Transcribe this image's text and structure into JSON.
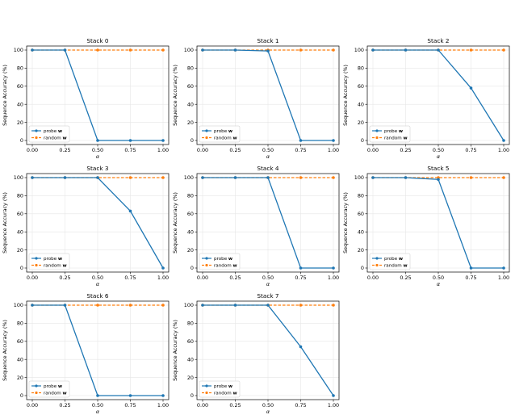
{
  "colors": {
    "probe": "#1f77b4",
    "random": "#ff7f0e",
    "grid": "#e6e6e6",
    "axis": "#000000"
  },
  "shared": {
    "xlabel": "α",
    "ylabel": "Sequence Accuracy (%)",
    "xticks": [
      "0.00",
      "0.25",
      "0.50",
      "0.75",
      "1.00"
    ],
    "yticks": [
      "0",
      "20",
      "40",
      "60",
      "80",
      "100"
    ],
    "legend": {
      "probe_prefix": "probe",
      "random_prefix": "random",
      "bold_symbol": "w",
      "placement": "lower-left"
    }
  },
  "chart_data": [
    {
      "type": "line",
      "title": "Stack 0",
      "x": [
        0,
        0.25,
        0.5,
        0.75,
        1.0
      ],
      "xlim": [
        0,
        1
      ],
      "ylim": [
        0,
        100
      ],
      "grid": true,
      "series": [
        {
          "name": "probe w",
          "values": [
            100,
            100,
            0,
            0,
            0
          ]
        },
        {
          "name": "random w",
          "values": [
            100,
            100,
            100,
            100,
            100
          ]
        }
      ]
    },
    {
      "type": "line",
      "title": "Stack 1",
      "x": [
        0,
        0.25,
        0.5,
        0.75,
        1.0
      ],
      "xlim": [
        0,
        1
      ],
      "ylim": [
        0,
        100
      ],
      "grid": true,
      "series": [
        {
          "name": "probe w",
          "values": [
            100,
            100,
            99,
            0,
            0
          ]
        },
        {
          "name": "random w",
          "values": [
            100,
            100,
            100,
            100,
            100
          ]
        }
      ]
    },
    {
      "type": "line",
      "title": "Stack 2",
      "x": [
        0,
        0.25,
        0.5,
        0.75,
        1.0
      ],
      "xlim": [
        0,
        1
      ],
      "ylim": [
        0,
        100
      ],
      "grid": true,
      "series": [
        {
          "name": "probe w",
          "values": [
            100,
            100,
            100,
            58,
            0
          ]
        },
        {
          "name": "random w",
          "values": [
            100,
            100,
            100,
            100,
            100
          ]
        }
      ]
    },
    {
      "type": "line",
      "title": "Stack 3",
      "x": [
        0,
        0.25,
        0.5,
        0.75,
        1.0
      ],
      "xlim": [
        0,
        1
      ],
      "ylim": [
        0,
        100
      ],
      "grid": true,
      "series": [
        {
          "name": "probe w",
          "values": [
            100,
            100,
            100,
            63,
            0
          ]
        },
        {
          "name": "random w",
          "values": [
            100,
            100,
            100,
            100,
            100
          ]
        }
      ]
    },
    {
      "type": "line",
      "title": "Stack 4",
      "x": [
        0,
        0.25,
        0.5,
        0.75,
        1.0
      ],
      "xlim": [
        0,
        1
      ],
      "ylim": [
        0,
        100
      ],
      "grid": true,
      "series": [
        {
          "name": "probe w",
          "values": [
            100,
            100,
            100,
            0,
            0
          ]
        },
        {
          "name": "random w",
          "values": [
            100,
            100,
            100,
            100,
            100
          ]
        }
      ]
    },
    {
      "type": "line",
      "title": "Stack 5",
      "x": [
        0,
        0.25,
        0.5,
        0.75,
        1.0
      ],
      "xlim": [
        0,
        1
      ],
      "ylim": [
        0,
        100
      ],
      "grid": true,
      "series": [
        {
          "name": "probe w",
          "values": [
            100,
            100,
            98,
            0,
            0
          ]
        },
        {
          "name": "random w",
          "values": [
            100,
            100,
            100,
            100,
            100
          ]
        }
      ]
    },
    {
      "type": "line",
      "title": "Stack 6",
      "x": [
        0,
        0.25,
        0.5,
        0.75,
        1.0
      ],
      "xlim": [
        0,
        1
      ],
      "ylim": [
        0,
        100
      ],
      "grid": true,
      "series": [
        {
          "name": "probe w",
          "values": [
            100,
            100,
            0,
            0,
            0
          ]
        },
        {
          "name": "random w",
          "values": [
            100,
            100,
            100,
            100,
            100
          ]
        }
      ]
    },
    {
      "type": "line",
      "title": "Stack 7",
      "x": [
        0,
        0.25,
        0.5,
        0.75,
        1.0
      ],
      "xlim": [
        0,
        1
      ],
      "ylim": [
        0,
        100
      ],
      "grid": true,
      "series": [
        {
          "name": "probe w",
          "values": [
            100,
            100,
            100,
            54,
            0
          ]
        },
        {
          "name": "random w",
          "values": [
            100,
            100,
            100,
            100,
            100
          ]
        }
      ]
    }
  ]
}
